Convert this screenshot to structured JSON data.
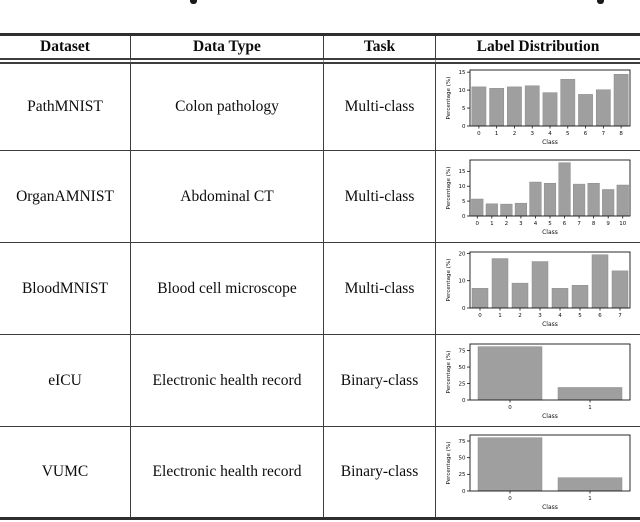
{
  "table": {
    "headers": [
      "Dataset",
      "Data Type",
      "Task",
      "Label Distribution"
    ],
    "rows": [
      {
        "dataset": "PathMNIST",
        "data_type": "Colon pathology",
        "task": "Multi-class"
      },
      {
        "dataset": "OrganAMNIST",
        "data_type": "Abdominal CT",
        "task": "Multi-class"
      },
      {
        "dataset": "BloodMNIST",
        "data_type": "Blood cell microscope",
        "task": "Multi-class"
      },
      {
        "dataset": "eICU",
        "data_type": "Electronic health record",
        "task": "Binary-class"
      },
      {
        "dataset": "VUMC",
        "data_type": "Electronic health record",
        "task": "Binary-class"
      }
    ]
  },
  "chart_data": [
    {
      "type": "bar",
      "categories": [
        "0",
        "1",
        "2",
        "3",
        "4",
        "5",
        "6",
        "7",
        "8"
      ],
      "values": [
        10.9,
        10.5,
        10.9,
        11.2,
        9.3,
        13.0,
        8.8,
        10.1,
        14.4
      ],
      "title": "",
      "xlabel": "Class",
      "ylabel": "Percentage (%)",
      "yticks": [
        0,
        5,
        10,
        15
      ],
      "ylim": [
        0,
        15.6
      ],
      "grid": false,
      "legend": "none"
    },
    {
      "type": "bar",
      "categories": [
        "0",
        "1",
        "2",
        "3",
        "4",
        "5",
        "6",
        "7",
        "8",
        "9",
        "10"
      ],
      "values": [
        5.7,
        4.1,
        4.0,
        4.3,
        11.4,
        11.0,
        17.9,
        10.7,
        11.0,
        8.9,
        10.4
      ],
      "title": "",
      "xlabel": "Class",
      "ylabel": "Percentage (%)",
      "yticks": [
        0,
        5,
        10,
        15
      ],
      "ylim": [
        0,
        18.8
      ],
      "grid": false,
      "legend": "none"
    },
    {
      "type": "bar",
      "categories": [
        "0",
        "1",
        "2",
        "3",
        "4",
        "5",
        "6",
        "7"
      ],
      "values": [
        7.2,
        18.1,
        9.1,
        17.0,
        7.2,
        8.3,
        19.5,
        13.6
      ],
      "title": "",
      "xlabel": "Class",
      "ylabel": "Percentage (%)",
      "yticks": [
        0,
        10,
        20
      ],
      "ylim": [
        0,
        20.5
      ],
      "grid": false,
      "legend": "none"
    },
    {
      "type": "bar",
      "categories": [
        "0",
        "1"
      ],
      "values": [
        81,
        19
      ],
      "title": "",
      "xlabel": "Class",
      "ylabel": "Percentage (%)",
      "yticks": [
        0,
        25,
        50,
        75
      ],
      "ylim": [
        0,
        85
      ],
      "grid": false,
      "legend": "none"
    },
    {
      "type": "bar",
      "categories": [
        "0",
        "1"
      ],
      "values": [
        80,
        20
      ],
      "title": "",
      "xlabel": "Class",
      "ylabel": "Percentage (%)",
      "yticks": [
        0,
        25,
        50,
        75
      ],
      "ylim": [
        0,
        84
      ],
      "grid": false,
      "legend": "none"
    }
  ],
  "colors": {
    "bar_fill": "#9f9f9f",
    "bar_edge": "#8a8a8a",
    "axis": "#141414",
    "rule": "#3d3d3d",
    "text": "#0c0c0c"
  }
}
